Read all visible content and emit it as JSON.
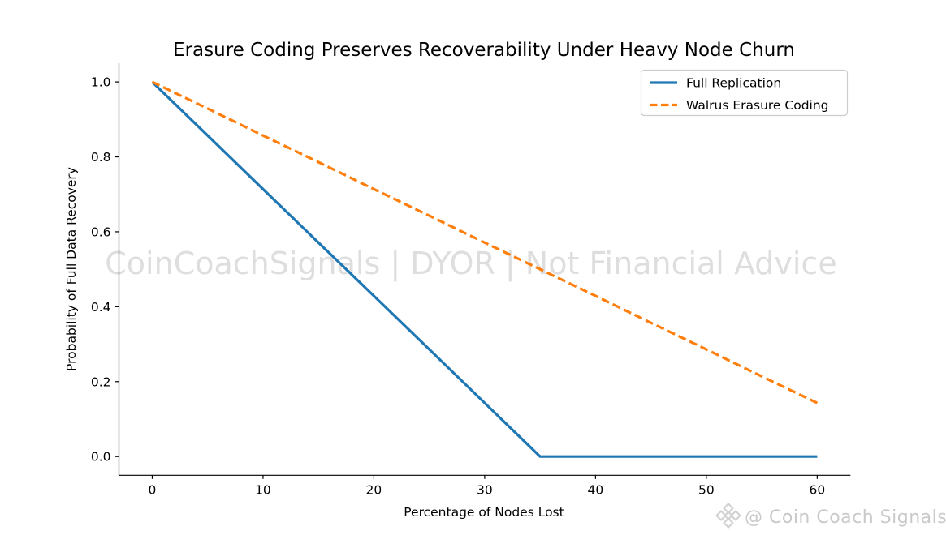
{
  "chart_data": {
    "type": "line",
    "title": "Erasure Coding Preserves Recoverability Under Heavy Node Churn",
    "xlabel": "Percentage of Nodes Lost",
    "ylabel": "Probability of Full Data Recovery",
    "x": [
      0,
      5,
      10,
      15,
      20,
      25,
      30,
      35,
      40,
      45,
      50,
      55,
      60
    ],
    "series": [
      {
        "name": "Full Replication",
        "color": "#1f77b4",
        "style": "solid",
        "values": [
          1.0,
          0.857,
          0.714,
          0.571,
          0.429,
          0.286,
          0.143,
          0.0,
          0.0,
          0.0,
          0.0,
          0.0,
          0.0
        ]
      },
      {
        "name": "Walrus Erasure Coding",
        "color": "#ff7f0e",
        "style": "dashed",
        "values": [
          1.0,
          0.929,
          0.857,
          0.786,
          0.714,
          0.643,
          0.571,
          0.5,
          0.429,
          0.357,
          0.286,
          0.214,
          0.143
        ]
      }
    ],
    "x_ticks": {
      "values": [
        0,
        10,
        20,
        30,
        40,
        50,
        60
      ],
      "labels": [
        "0",
        "10",
        "20",
        "30",
        "40",
        "50",
        "60"
      ]
    },
    "y_ticks": {
      "values": [
        0.0,
        0.2,
        0.4,
        0.6,
        0.8,
        1.0
      ],
      "labels": [
        "0.0",
        "0.2",
        "0.4",
        "0.6",
        "0.8",
        "1.0"
      ]
    },
    "xlim": [
      -3,
      63
    ],
    "ylim": [
      -0.05,
      1.05
    ],
    "grid": false,
    "legend_position": "upper right"
  },
  "watermark": {
    "text": "CoinCoachSignals | DYOR | Not Financial Advice"
  },
  "signature": {
    "text": "@ Coin Coach Signals",
    "icon": "binance-diamond-logo"
  },
  "colors": {
    "series_blue": "#1f77b4",
    "series_orange": "#ff7f0e",
    "axis": "#000000",
    "legend_border": "#cccccc",
    "watermark": "#dedede",
    "signature": "#c9c9c9"
  }
}
